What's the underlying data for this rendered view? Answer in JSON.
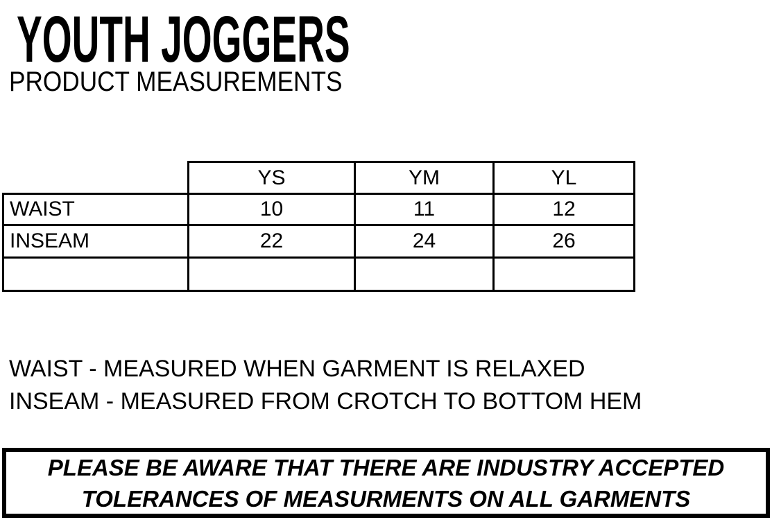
{
  "header": {
    "title": "YOUTH JOGGERS",
    "subtitle": "PRODUCT MEASUREMENTS"
  },
  "size_table": {
    "columns": [
      "YS",
      "YM",
      "YL"
    ],
    "rows": [
      {
        "label": "WAIST",
        "values": [
          "10",
          "11",
          "12"
        ]
      },
      {
        "label": "INSEAM",
        "values": [
          "22",
          "24",
          "26"
        ]
      },
      {
        "label": "",
        "values": [
          "",
          "",
          ""
        ]
      }
    ]
  },
  "notes": [
    "WAIST - MEASURED WHEN GARMENT IS RELAXED",
    "INSEAM - MEASURED FROM CROTCH TO BOTTOM HEM"
  ],
  "disclaimer": {
    "line1": "PLEASE BE AWARE THAT THERE ARE INDUSTRY ACCEPTED",
    "line2": "TOLERANCES OF MEASURMENTS ON ALL GARMENTS"
  },
  "colors": {
    "text": "#000000",
    "background": "#ffffff",
    "border": "#000000"
  }
}
